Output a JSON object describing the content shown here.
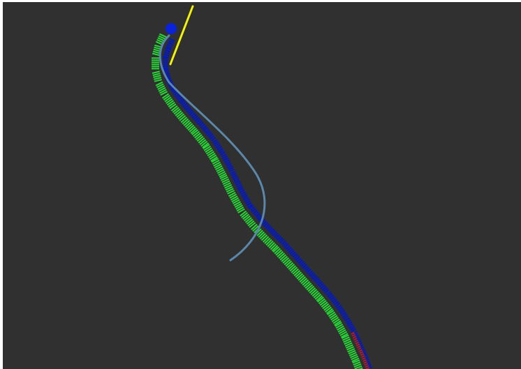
{
  "viewport": {
    "background_color": "#303030",
    "border_color": "#ffffff"
  },
  "scene": {
    "colors": {
      "green_ticks": "#27d735",
      "blue_ticks": "#0018c8",
      "red_ticks": "#d81818",
      "steel_path": "#5a87aa",
      "yellow_line": "#f2f20a",
      "robot_marker": "#0a22d8"
    },
    "layers": [
      "green-pose-array",
      "blue-pose-array",
      "red-pose-array",
      "steel-blue-global-path",
      "yellow-heading-line",
      "robot-marker"
    ]
  }
}
